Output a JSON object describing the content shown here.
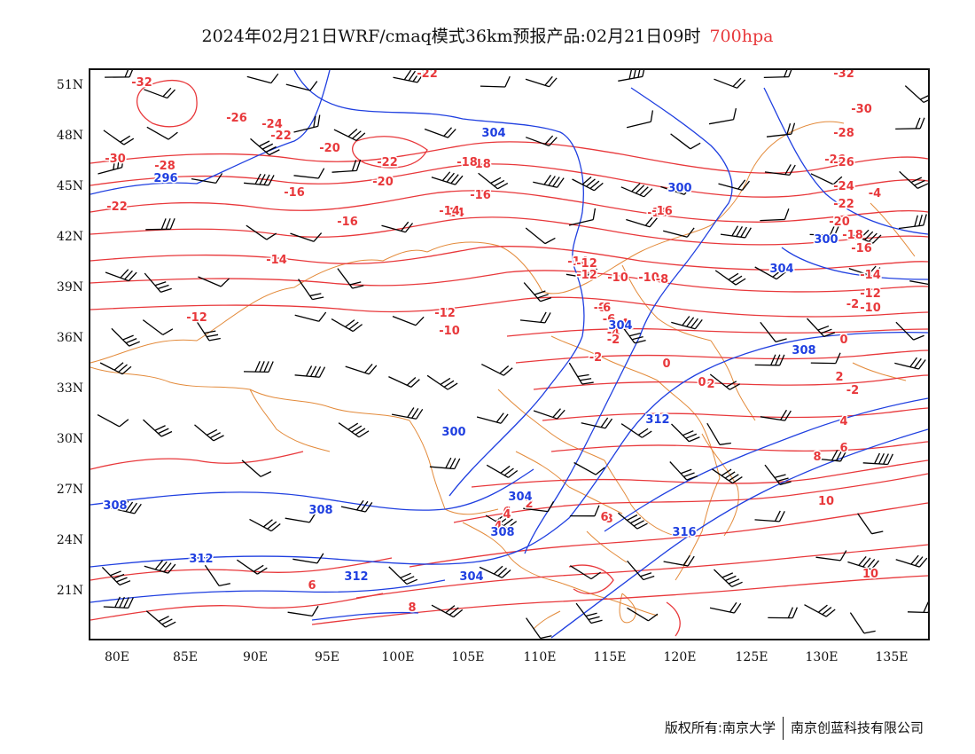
{
  "title": {
    "main": "2024年02月21日WRF/cmaq模式36km预报产品:02月21日09时",
    "level": "700hpa"
  },
  "colors": {
    "temperature_contour": "#e8383b",
    "geopotential_contour": "#1f3fe0",
    "boundary": "#e38a3a",
    "wind_barb": "#000000"
  },
  "map": {
    "lat_labels": [
      "51N",
      "48N",
      "45N",
      "42N",
      "39N",
      "36N",
      "33N",
      "30N",
      "27N",
      "24N",
      "21N"
    ],
    "lon_labels": [
      "80E",
      "85E",
      "90E",
      "95E",
      "100E",
      "105E",
      "110E",
      "115E",
      "120E",
      "125E",
      "130E",
      "135E"
    ],
    "temperature_labels": [
      "-32",
      "-26",
      "-24",
      "-22",
      "-22",
      "-30",
      "-28",
      "-26",
      "-22",
      "-20",
      "-22",
      "-20",
      "-18",
      "-16",
      "-16",
      "-16",
      "-14",
      "-16",
      "-14",
      "-12",
      "-14",
      "-12",
      "-10",
      "-12",
      "-10",
      "-8",
      "-6",
      "-4",
      "-2",
      "0",
      "2",
      "4",
      "6",
      "8",
      "10",
      "-4",
      "-2",
      "0",
      "2",
      "4",
      "6",
      "8",
      "10",
      "-18",
      "-16",
      "-14",
      "-12",
      "-10",
      "-8",
      "-6",
      "-4",
      "-2",
      "0",
      "2",
      "4",
      "6",
      "-2",
      "6",
      "8",
      "-32",
      "-30",
      "-28",
      "-26",
      "-24",
      "-22",
      "-20",
      "-18",
      "-16",
      "-14",
      "-12",
      "-10"
    ],
    "height_labels": [
      "296",
      "304",
      "300",
      "304",
      "300",
      "304",
      "308",
      "300",
      "308",
      "304",
      "308",
      "312",
      "308",
      "312",
      "312",
      "316",
      "304"
    ]
  },
  "footer": {
    "copyright": "版权所有:南京大学",
    "company": "南京创蓝科技有限公司"
  }
}
